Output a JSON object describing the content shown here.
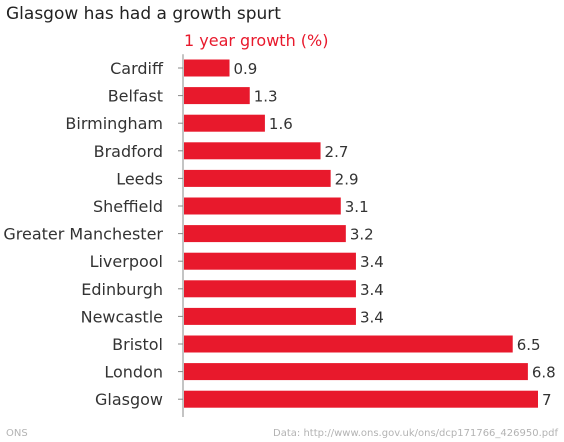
{
  "title": "Glasgow has had a growth spurt",
  "source_left": "ONS",
  "source_right": "Data: http://www.ons.gov.uk/ons/dcp171766_426950.pdf",
  "colors": {
    "bar": "#e8192c",
    "series_label": "#e8192c",
    "axis": "#888888"
  },
  "chart_data": {
    "type": "bar",
    "orientation": "horizontal",
    "title": "Glasgow has had a growth spurt",
    "series": [
      {
        "name": "1 year growth (%)",
        "values": [
          0.9,
          1.3,
          1.6,
          2.7,
          2.9,
          3.1,
          3.2,
          3.4,
          3.4,
          3.4,
          6.5,
          6.8,
          7
        ]
      }
    ],
    "categories": [
      "Cardiff",
      "Belfast",
      "Birmingham",
      "Bradford",
      "Leeds",
      "Sheffield",
      "Greater Manchester",
      "Liverpool",
      "Edinburgh",
      "Newcastle",
      "Bristol",
      "London",
      "Glasgow"
    ],
    "value_labels": [
      "0.9",
      "1.3",
      "1.6",
      "2.7",
      "2.9",
      "3.1",
      "3.2",
      "3.4",
      "3.4",
      "3.4",
      "6.5",
      "6.8",
      "7"
    ],
    "xlim": [
      0,
      7
    ],
    "grid": false,
    "legend": "top"
  }
}
